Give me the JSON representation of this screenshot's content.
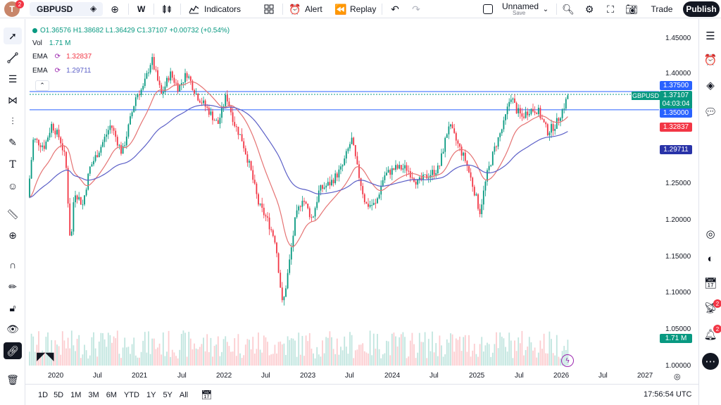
{
  "topbar": {
    "avatar_letter": "T",
    "avatar_badge": "2",
    "symbol": "GBPUSD",
    "interval": "W",
    "indicators_label": "Indicators",
    "alert_label": "Alert",
    "replay_label": "Replay",
    "layout_name": "Unnamed",
    "save_label": "Save",
    "trade_label": "Trade",
    "publish_label": "Publish"
  },
  "legend": {
    "ohlc": "O1.36576 H1.38682 L1.36429 C1.37107 +0.00732 (+0.54%)",
    "vol_label": "Vol",
    "vol_value": "1.71 M",
    "ema1_label": "EMA",
    "ema1_value": "1.32837",
    "ema2_label": "EMA",
    "ema2_value": "1.29711"
  },
  "price_axis": {
    "ticks": [
      "1.45000",
      "1.40000",
      "1.25000",
      "1.20000",
      "1.15000",
      "1.10000",
      "1.05000",
      "1.00000"
    ],
    "tag_high": "1.37500",
    "tag_symbol": "GBPUSD",
    "tag_price": "1.37107",
    "tag_countdown": "04:03:04",
    "tag_level": "1.35000",
    "tag_ema1": "1.32837",
    "tag_ema2": "1.29711",
    "tag_vol": "1.71 M"
  },
  "time_axis": {
    "ticks": [
      "2020",
      "Jul",
      "2021",
      "Jul",
      "2022",
      "Jul",
      "2023",
      "Jul",
      "2024",
      "Jul",
      "2025",
      "Jul",
      "2026",
      "Jul",
      "2027"
    ]
  },
  "bottombar": {
    "ranges": [
      "1D",
      "5D",
      "1M",
      "3M",
      "6M",
      "YTD",
      "1Y",
      "5Y",
      "All"
    ],
    "clock": "17:56:54 UTC"
  },
  "right_toolbar": {
    "badge1": "2",
    "badge2": "2"
  },
  "colors": {
    "up": "#089981",
    "down": "#f23645",
    "ema1": "#e57373",
    "ema2": "#5b5fc7",
    "level_line": "#2962ff",
    "price_tag": "#089981"
  }
}
